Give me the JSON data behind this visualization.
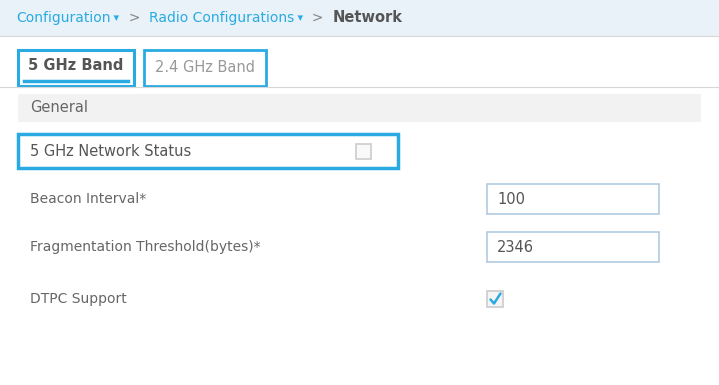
{
  "white": "#ffffff",
  "light_gray": "#f2f2f2",
  "mid_gray": "#d8d8d8",
  "blue_border": "#29abe2",
  "text_dark": "#555555",
  "text_blue": "#29abe2",
  "text_label": "#666666",
  "text_network": "#555555",
  "checkbox_gray": "#cccccc",
  "input_border": "#aac8e0",
  "breadcrumb_bg": "#e8f2f8",
  "tab1_label": "5 GHz Band",
  "tab2_label": "2.4 GHz Band",
  "section_label": "General",
  "highlight_label": "5 GHz Network Status",
  "fields": [
    {
      "label": "Beacon Interval*",
      "value": "100"
    },
    {
      "label": "Fragmentation Threshold(bytes)*",
      "value": "2346"
    }
  ],
  "dtpc_label": "DTPC Support",
  "breadcrumb_config": "Configuration",
  "breadcrumb_sep1": " ▾  >  ",
  "breadcrumb_radio": "Radio Configurations",
  "breadcrumb_sep2": " ▾  >  ",
  "breadcrumb_network": "Network"
}
